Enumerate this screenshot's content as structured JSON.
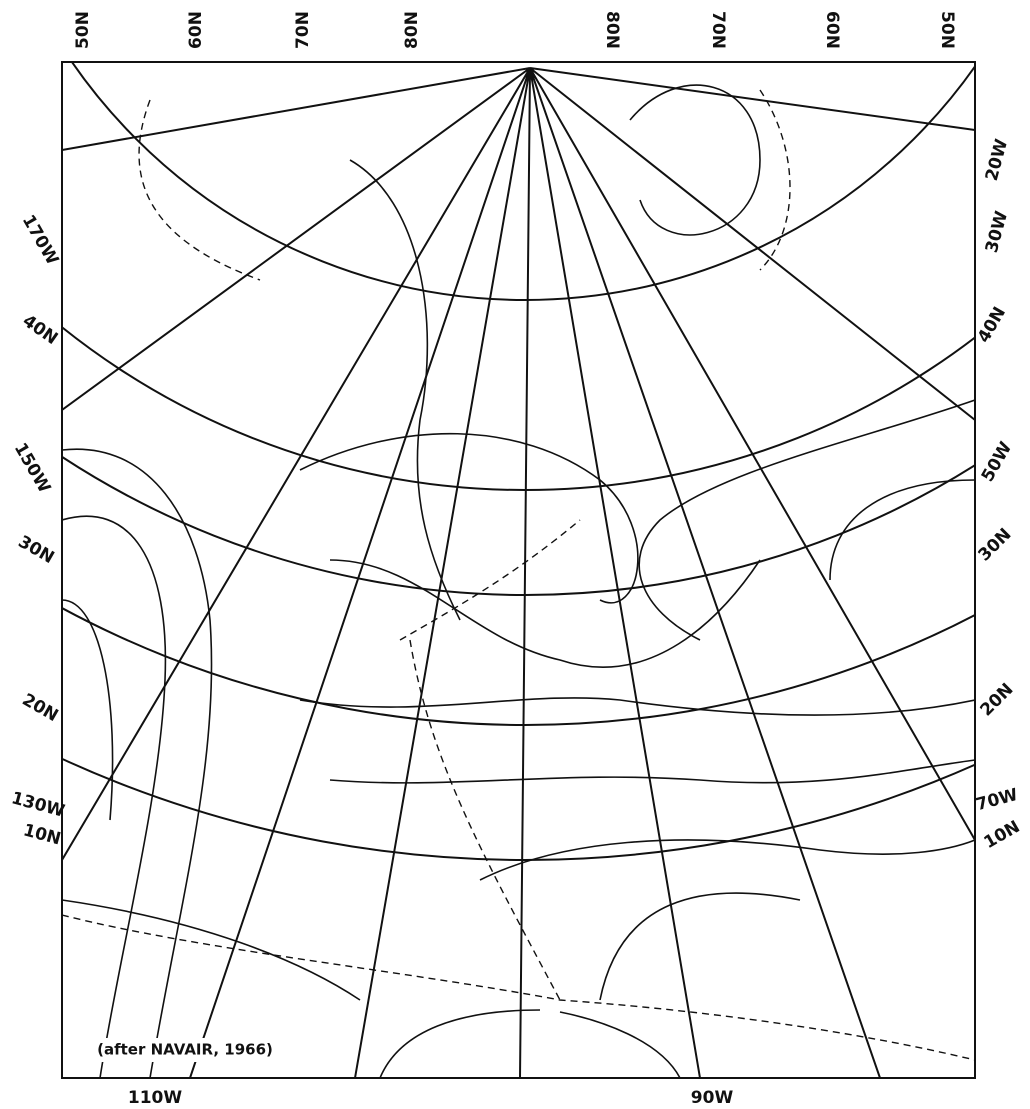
{
  "labels": [
    "50N",
    "60N",
    "70N",
    "80N",
    "80N",
    "70N",
    "60N",
    "50N",
    "20W",
    "30W",
    "170W",
    "40N",
    "40N",
    "150W",
    "50W",
    "30N",
    "30N",
    "20N",
    "20N",
    "130W",
    "70W",
    "10N",
    "10N",
    "110W",
    "90W"
  ],
  "credit": "(after NAVAIR, 1966)"
}
